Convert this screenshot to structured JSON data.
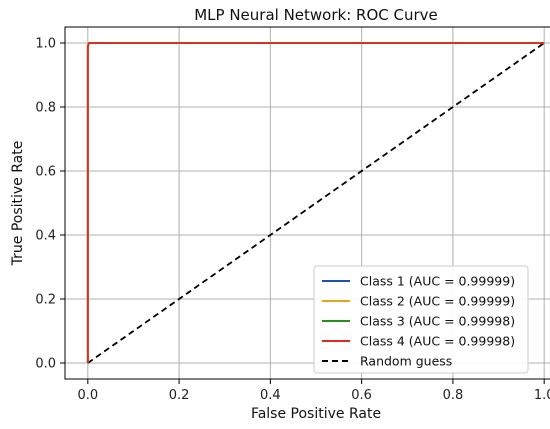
{
  "chart_data": {
    "type": "line",
    "title": "MLP Neural Network: ROC Curve",
    "xlabel": "False Positive Rate",
    "ylabel": "True Positive Rate",
    "xlim": [
      -0.05,
      1.05
    ],
    "ylim": [
      -0.05,
      1.05
    ],
    "xticks": [
      0.0,
      0.2,
      0.4,
      0.6,
      0.8,
      1.0
    ],
    "yticks": [
      0.0,
      0.2,
      0.4,
      0.6,
      0.8,
      1.0
    ],
    "xtick_labels": [
      "0.0",
      "0.2",
      "0.4",
      "0.6",
      "0.8",
      "1.0"
    ],
    "ytick_labels": [
      "0.0",
      "0.2",
      "0.4",
      "0.6",
      "0.8",
      "1.0"
    ],
    "grid": true,
    "legend_position": "lower-right",
    "series": [
      {
        "name": "Class 1 (AUC = 0.99999)",
        "color": "#1f4fb4",
        "dash": "solid",
        "x": [
          0.0,
          0.0,
          0.002,
          1.0
        ],
        "y": [
          0.0,
          0.99,
          1.0,
          1.0
        ]
      },
      {
        "name": "Class 2 (AUC = 0.99999)",
        "color": "#e6a21a",
        "dash": "solid",
        "x": [
          0.0,
          0.0,
          0.002,
          1.0
        ],
        "y": [
          0.0,
          0.99,
          1.0,
          1.0
        ]
      },
      {
        "name": "Class 3 (AUC = 0.99998)",
        "color": "#2e8b1e",
        "dash": "solid",
        "x": [
          0.0,
          0.0,
          0.003,
          1.0
        ],
        "y": [
          0.0,
          0.99,
          1.0,
          1.0
        ]
      },
      {
        "name": "Class 4 (AUC = 0.99998)",
        "color": "#e8291c",
        "dash": "solid",
        "x": [
          0.0,
          0.0,
          0.003,
          1.0
        ],
        "y": [
          0.0,
          0.99,
          1.0,
          1.0
        ]
      },
      {
        "name": "Random guess",
        "color": "#000000",
        "dash": "dashed",
        "x": [
          0.0,
          1.0
        ],
        "y": [
          0.0,
          1.0
        ]
      }
    ]
  }
}
